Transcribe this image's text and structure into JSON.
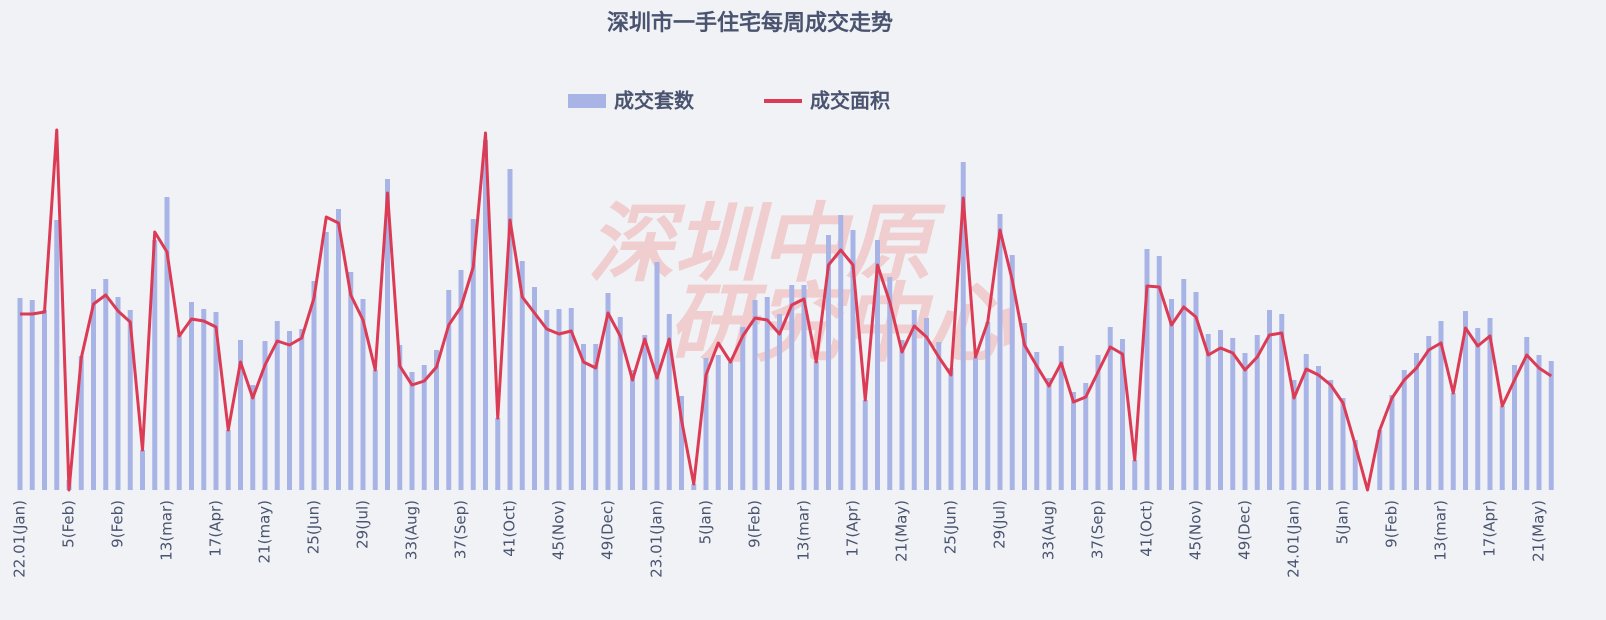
{
  "chart_data": {
    "type": "bar_line",
    "title": "深圳市一手住宅每周成交走势",
    "watermark": [
      "深圳中原",
      "研究中心"
    ],
    "categories": [
      "22.01(Jan)",
      null,
      null,
      null,
      "5(Feb)",
      null,
      null,
      null,
      "9(Feb)",
      null,
      null,
      null,
      "13(mar)",
      null,
      null,
      null,
      "17(Apr)",
      null,
      null,
      null,
      "21(may)",
      null,
      null,
      null,
      "25(Jun)",
      null,
      null,
      null,
      "29(Jul)",
      null,
      null,
      null,
      "33(Aug)",
      null,
      null,
      null,
      "37(Sep)",
      null,
      null,
      null,
      "41(Oct)",
      null,
      null,
      null,
      "45(Nov)",
      null,
      null,
      null,
      "49(Dec)",
      null,
      null,
      null,
      "23.01(Jan)",
      null,
      null,
      null,
      "5(Jan)",
      null,
      null,
      null,
      "9(Feb)",
      null,
      null,
      null,
      "13(mar)",
      null,
      null,
      null,
      "17(Apr)",
      null,
      null,
      null,
      "21(May)",
      null,
      null,
      null,
      "25(Jun)",
      null,
      null,
      null,
      "29(Jul)",
      null,
      null,
      null,
      "33(Aug)",
      null,
      null,
      null,
      "37(Sep)",
      null,
      null,
      null,
      "41(Oct)",
      null,
      null,
      null,
      "45(Nov)",
      null,
      null,
      null,
      "49(Dec)",
      null,
      null,
      null,
      "24.01(Jan)",
      null,
      null,
      null,
      "5(Jan)",
      null,
      null,
      null,
      "9(Feb)",
      null,
      null,
      null,
      "13(mar)",
      null,
      null,
      null,
      "17(Apr)",
      null,
      null,
      null,
      "21(May)",
      null
    ],
    "series": [
      {
        "name": "成交套数",
        "type": "bar",
        "color": "#a9b4e6",
        "values": [
          192,
          190,
          180,
          270,
          10,
          134,
          201,
          211,
          193,
          180,
          40,
          250,
          293,
          155,
          188,
          181,
          178,
          60,
          150,
          105,
          149,
          169,
          159,
          161,
          209,
          258,
          281,
          218,
          191,
          120,
          311,
          145,
          118,
          125,
          140,
          200,
          220,
          271,
          350,
          72,
          321,
          229,
          203,
          180,
          181,
          182,
          146,
          146,
          197,
          173,
          120,
          155,
          228,
          176,
          94,
          6,
          132,
          135,
          128,
          163,
          190,
          193,
          176,
          205,
          205,
          129,
          255,
          275,
          260,
          90,
          250,
          213,
          150,
          180,
          172,
          148,
          122,
          328,
          133,
          168,
          276,
          235,
          167,
          138,
          112,
          144,
          98,
          107,
          135,
          163,
          151,
          30,
          241,
          234,
          191,
          211,
          198,
          156,
          160,
          152,
          137,
          155,
          180,
          176,
          110,
          136,
          124,
          110,
          92,
          50,
          0,
          60,
          95,
          120,
          137,
          154,
          169,
          97,
          179,
          162,
          172,
          84,
          125,
          153,
          135,
          129
        ]
      },
      {
        "name": "成交面积",
        "type": "line",
        "color": "#dc3b55",
        "values": [
          176,
          176,
          178,
          360,
          0,
          132,
          186,
          195,
          179,
          168,
          40,
          258,
          238,
          154,
          171,
          169,
          163,
          60,
          128,
          92,
          125,
          149,
          145,
          152,
          192,
          273,
          267,
          195,
          170,
          120,
          297,
          124,
          105,
          109,
          123,
          165,
          183,
          223,
          357,
          72,
          270,
          193,
          177,
          161,
          156,
          159,
          128,
          122,
          177,
          154,
          110,
          151,
          112,
          151,
          70,
          6,
          115,
          147,
          128,
          154,
          172,
          170,
          156,
          185,
          191,
          128,
          225,
          240,
          225,
          90,
          225,
          188,
          138,
          164,
          153,
          133,
          115,
          292,
          133,
          168,
          260,
          210,
          145,
          124,
          104,
          127,
          88,
          93,
          118,
          143,
          136,
          30,
          204,
          203,
          165,
          183,
          173,
          135,
          142,
          137,
          120,
          133,
          155,
          157,
          92,
          121,
          115,
          105,
          87,
          45,
          0,
          60,
          92,
          110,
          122,
          140,
          147,
          97,
          162,
          144,
          154,
          84,
          110,
          135,
          122,
          114
        ]
      }
    ],
    "ylim": [
      0,
      360
    ]
  }
}
